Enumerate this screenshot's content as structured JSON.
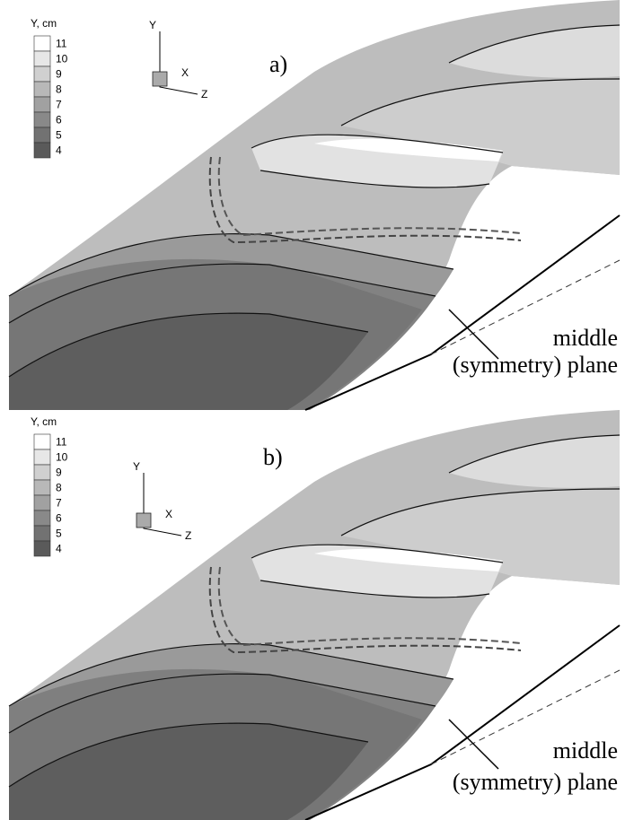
{
  "panels": [
    {
      "label": "a)",
      "legend": {
        "title": "Y, cm",
        "levels": [
          11,
          10,
          9,
          8,
          7,
          6,
          5,
          4
        ]
      },
      "axes": {
        "y": "Y",
        "x": "X",
        "z": "Z"
      },
      "annotation": [
        "middle",
        "(symmetry) plane"
      ]
    },
    {
      "label": "b)",
      "legend": {
        "title": "Y, cm",
        "levels": [
          11,
          10,
          9,
          8,
          7,
          6,
          5,
          4
        ]
      },
      "axes": {
        "y": "Y",
        "x": "X",
        "z": "Z"
      },
      "annotation": [
        "middle",
        "(symmetry) plane"
      ]
    }
  ]
}
